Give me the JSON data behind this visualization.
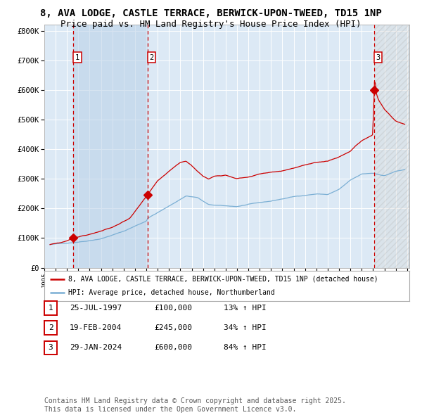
{
  "title_line1": "8, AVA LODGE, CASTLE TERRACE, BERWICK-UPON-TWEED, TD15 1NP",
  "title_line2": "Price paid vs. HM Land Registry's House Price Index (HPI)",
  "title_fontsize": 10,
  "subtitle_fontsize": 9,
  "background_color": "#ffffff",
  "plot_bg_color": "#dce9f5",
  "grid_color": "#ffffff",
  "ylabel_ticks": [
    "£0",
    "£100K",
    "£200K",
    "£300K",
    "£400K",
    "£500K",
    "£600K",
    "£700K",
    "£800K"
  ],
  "ytick_values": [
    0,
    100000,
    200000,
    300000,
    400000,
    500000,
    600000,
    700000,
    800000
  ],
  "ylim": [
    0,
    820000
  ],
  "xlim_start": 1995.3,
  "xlim_end": 2027.2,
  "xtick_years": [
    1995,
    1996,
    1997,
    1998,
    1999,
    2000,
    2001,
    2002,
    2003,
    2004,
    2005,
    2006,
    2007,
    2008,
    2009,
    2010,
    2011,
    2012,
    2013,
    2014,
    2015,
    2016,
    2017,
    2018,
    2019,
    2020,
    2021,
    2022,
    2023,
    2024,
    2025,
    2026,
    2027
  ],
  "red_line_color": "#cc0000",
  "blue_line_color": "#7bafd4",
  "sale1_x": 1997.56,
  "sale1_y": 100000,
  "sale2_x": 2004.12,
  "sale2_y": 245000,
  "sale3_x": 2024.08,
  "sale3_y": 600000,
  "vline1_x": 1997.56,
  "vline2_x": 2004.12,
  "vline3_x": 2024.08,
  "shade1_start": 1997.56,
  "shade1_end": 2004.12,
  "shade3_start": 2024.08,
  "shade3_end": 2027.2,
  "legend_red": "8, AVA LODGE, CASTLE TERRACE, BERWICK-UPON-TWEED, TD15 1NP (detached house)",
  "legend_blue": "HPI: Average price, detached house, Northumberland",
  "table_rows": [
    [
      "1",
      "25-JUL-1997",
      "£100,000",
      "13% ↑ HPI"
    ],
    [
      "2",
      "19-FEB-2004",
      "£245,000",
      "34% ↑ HPI"
    ],
    [
      "3",
      "29-JAN-2024",
      "£600,000",
      "84% ↑ HPI"
    ]
  ],
  "footer_text": "Contains HM Land Registry data © Crown copyright and database right 2025.\nThis data is licensed under the Open Government Licence v3.0.",
  "footer_fontsize": 7
}
